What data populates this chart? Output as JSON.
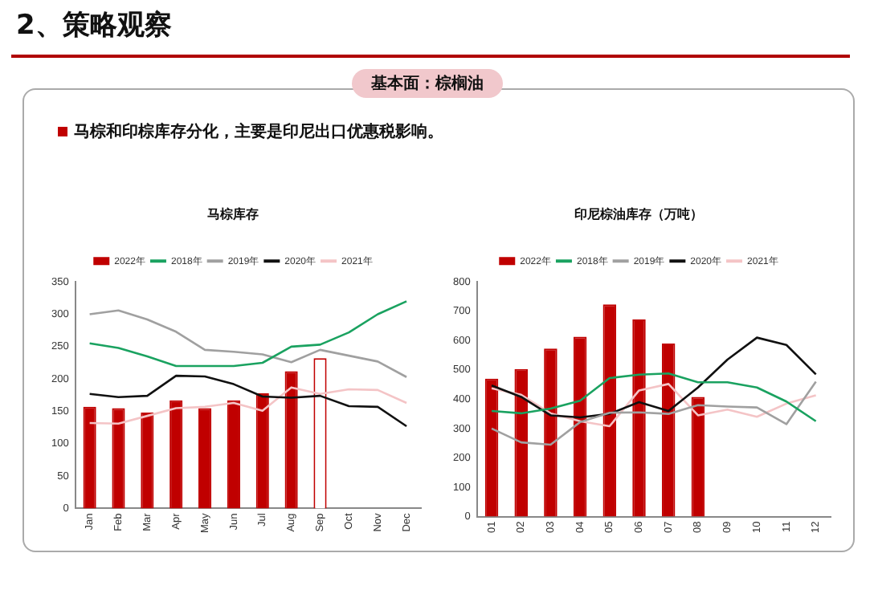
{
  "chart_data": [
    {
      "type": "bar",
      "title": "马棕库存",
      "annotations": [
        "2、策略观察",
        "基本面：棕榈油",
        "马棕和印棕库存分化，主要是印尼出口优惠税影响。"
      ],
      "categories": [
        "Jan",
        "Feb",
        "Mar",
        "Apr",
        "May",
        "Jun",
        "Jul",
        "Aug",
        "Sep",
        "Oct",
        "Nov",
        "Dec"
      ],
      "series": [
        {
          "name": "2022年",
          "color": "#c00000",
          "colors": [
            "#c00000",
            "#c00000",
            "#c00000",
            "#c00000",
            "#c00000",
            "#c00000",
            "#c00000",
            "#c00000",
            "#ffffff",
            "#c00000",
            "#c00000",
            "#c00000"
          ],
          "values": [
            157,
            155,
            148,
            167,
            155,
            167,
            178,
            212,
            232,
            null,
            null,
            null
          ]
        },
        {
          "name": "2018年",
          "type": "line",
          "color": "#1aa260",
          "values": [
            255,
            248,
            235,
            220,
            220,
            220,
            225,
            250,
            253,
            272,
            300,
            320
          ]
        },
        {
          "name": "2019年",
          "type": "line",
          "color": "#a0a0a0",
          "values": [
            300,
            306,
            292,
            273,
            245,
            242,
            238,
            226,
            245,
            236,
            227,
            203
          ]
        },
        {
          "name": "2020年",
          "type": "line",
          "color": "#111111",
          "values": [
            177,
            172,
            174,
            205,
            204,
            192,
            173,
            171,
            174,
            158,
            157,
            127
          ]
        },
        {
          "name": "2021年",
          "type": "line",
          "color": "#f4c4c6",
          "values": [
            132,
            131,
            143,
            155,
            157,
            163,
            151,
            187,
            177,
            184,
            183,
            163
          ]
        }
      ],
      "ylim": [
        0,
        350
      ],
      "yticks": [
        0,
        50,
        100,
        150,
        200,
        250,
        300,
        350
      ],
      "legend": "top",
      "marker": "none",
      "grid": false
    },
    {
      "type": "bar",
      "title": "印尼棕油库存（万吨）",
      "categories": [
        "01",
        "02",
        "03",
        "04",
        "05",
        "06",
        "07",
        "08",
        "09",
        "10",
        "11",
        "12"
      ],
      "series": [
        {
          "name": "2022年",
          "color": "#c00000",
          "values": [
            470,
            503,
            573,
            613,
            723,
            672,
            590,
            408,
            null,
            null,
            null,
            null
          ]
        },
        {
          "name": "2018年",
          "type": "line",
          "color": "#1aa260",
          "values": [
            360,
            352,
            368,
            395,
            472,
            484,
            488,
            458,
            458,
            440,
            392,
            325
          ]
        },
        {
          "name": "2019年",
          "type": "line",
          "color": "#a0a0a0",
          "values": [
            300,
            253,
            245,
            322,
            354,
            355,
            350,
            380,
            375,
            372,
            315,
            460
          ]
        },
        {
          "name": "2020年",
          "type": "line",
          "color": "#111111",
          "values": [
            447,
            408,
            345,
            338,
            350,
            390,
            360,
            440,
            535,
            610,
            585,
            485
          ]
        },
        {
          "name": "2021年",
          "type": "line",
          "color": "#f4c4c6",
          "values": [
            437,
            415,
            352,
            325,
            308,
            430,
            452,
            345,
            365,
            340,
            385,
            413
          ]
        }
      ],
      "ylim": [
        0,
        800
      ],
      "yticks": [
        0,
        100,
        200,
        300,
        400,
        500,
        600,
        700,
        800
      ],
      "legend": "top",
      "marker": "none",
      "grid": false
    }
  ]
}
